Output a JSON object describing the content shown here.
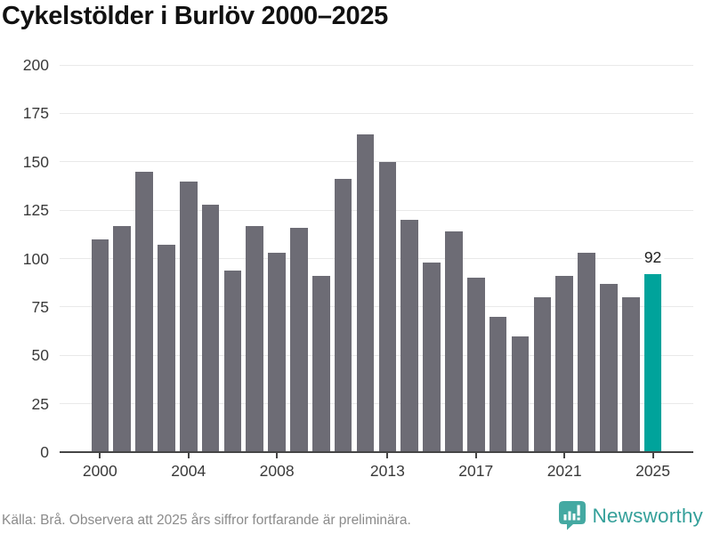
{
  "title": "Cykelstölder i Burlöv 2000–2025",
  "footer": {
    "source_note": "Källa: Brå. Observera att 2025 års siffror fortfarande är preliminära.",
    "brand": "Newsworthy"
  },
  "colors": {
    "bar": "#6d6c75",
    "highlight": "#00a39b",
    "grid": "#e9e9e9",
    "axis": "#454545",
    "title_text": "#111111",
    "tick_text": "#3a3a3a",
    "footer_text": "#8b8b8b",
    "brand_teal": "#35a09a"
  },
  "chart_data": {
    "type": "bar",
    "title": "Cykelstölder i Burlöv 2000–2025",
    "x": [
      2000,
      2001,
      2002,
      2003,
      2004,
      2005,
      2006,
      2007,
      2008,
      2009,
      2010,
      2011,
      2012,
      2013,
      2014,
      2015,
      2016,
      2017,
      2018,
      2019,
      2020,
      2021,
      2022,
      2023,
      2024,
      2025
    ],
    "values": [
      110,
      117,
      145,
      107,
      140,
      128,
      94,
      117,
      103,
      116,
      91,
      141,
      164,
      150,
      120,
      98,
      114,
      90,
      70,
      60,
      80,
      91,
      103,
      87,
      80,
      92
    ],
    "highlight_index": 25,
    "highlight_label": "92",
    "ylim": [
      0,
      200
    ],
    "yticks": [
      0,
      25,
      50,
      75,
      100,
      125,
      150,
      175,
      200
    ],
    "xticks": [
      2000,
      2004,
      2008,
      2013,
      2017,
      2021,
      2025
    ],
    "grid": "horizontal",
    "legend": "none",
    "xlabel": "",
    "ylabel": ""
  }
}
